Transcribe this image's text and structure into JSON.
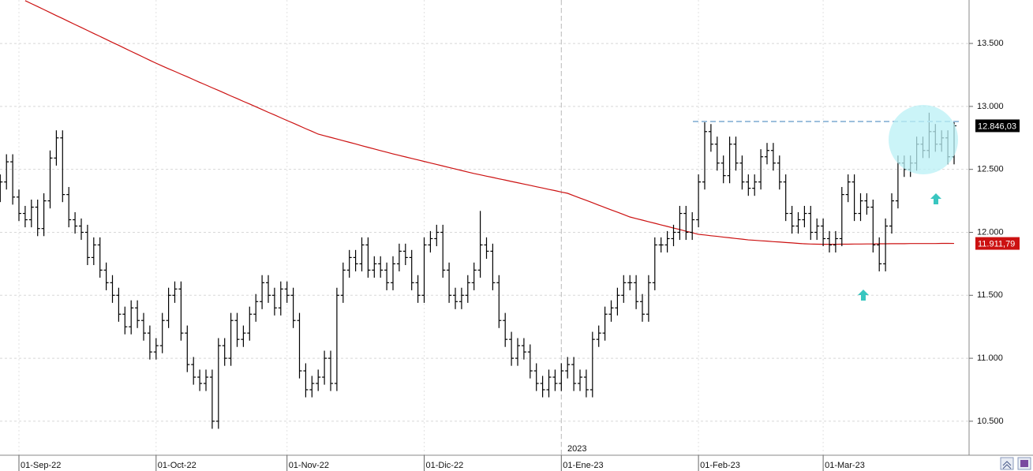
{
  "chart_data": {
    "type": "ohlc",
    "categories": [
      null,
      null,
      null,
      "01-Sep-22",
      null,
      null,
      null,
      null,
      null,
      null,
      null,
      null,
      null,
      null,
      null,
      null,
      null,
      null,
      null,
      null,
      null,
      null,
      null,
      null,
      null,
      "01-Oct-22",
      null,
      null,
      null,
      null,
      null,
      null,
      null,
      null,
      null,
      null,
      null,
      null,
      null,
      null,
      null,
      null,
      null,
      null,
      null,
      null,
      "01-Nov-22",
      null,
      null,
      null,
      null,
      null,
      null,
      null,
      null,
      null,
      null,
      null,
      null,
      null,
      null,
      null,
      null,
      null,
      null,
      null,
      null,
      null,
      "01-Dic-22",
      null,
      null,
      null,
      null,
      null,
      null,
      null,
      null,
      null,
      null,
      null,
      null,
      null,
      null,
      null,
      null,
      null,
      null,
      null,
      null,
      null,
      "01-Ene-23",
      null,
      null,
      null,
      null,
      null,
      null,
      null,
      null,
      null,
      null,
      null,
      null,
      null,
      null,
      null,
      null,
      null,
      null,
      null,
      null,
      null,
      "01-Feb-23",
      null,
      null,
      null,
      null,
      null,
      null,
      null,
      null,
      null,
      null,
      null,
      null,
      null,
      null,
      null,
      null,
      null,
      null,
      null,
      "01-Mar-23",
      null,
      null,
      null,
      null,
      null,
      null,
      null,
      null,
      null,
      null,
      null,
      null,
      null,
      null,
      null,
      null,
      null,
      null,
      null,
      null,
      null
    ],
    "year_label": "2023",
    "ohlc": {
      "color": "#000000",
      "last_label": "12.846,03",
      "open": [
        12300,
        12400,
        12560,
        12280,
        12150,
        12100,
        12200,
        12030,
        12250,
        12590,
        12750,
        12300,
        12100,
        12050,
        12000,
        11800,
        11900,
        11700,
        11600,
        11500,
        11350,
        11250,
        11400,
        11300,
        11200,
        11050,
        11100,
        11300,
        11500,
        11550,
        11200,
        10950,
        10850,
        10800,
        10850,
        10500,
        11100,
        11000,
        11300,
        11150,
        11200,
        11350,
        11450,
        11600,
        11500,
        11400,
        11550,
        11500,
        11300,
        10900,
        10750,
        10800,
        10850,
        11000,
        10800,
        11500,
        11700,
        11800,
        11750,
        11900,
        11700,
        11750,
        11700,
        11600,
        11750,
        11850,
        11800,
        11600,
        11500,
        11900,
        11950,
        12000,
        11700,
        11500,
        11450,
        11500,
        11600,
        11700,
        11900,
        11850,
        11600,
        11300,
        11150,
        11000,
        11100,
        11050,
        10900,
        10800,
        10750,
        10850,
        10800,
        10900,
        10950,
        10800,
        10850,
        10750,
        11150,
        11200,
        11350,
        11400,
        11500,
        11600,
        11600,
        11450,
        11350,
        11600,
        11900,
        11900,
        11950,
        12000,
        12150,
        12000,
        12100,
        12400,
        12800,
        12700,
        12550,
        12450,
        12700,
        12550,
        12400,
        12350,
        12400,
        12600,
        12650,
        12550,
        12400,
        12150,
        12050,
        12100,
        12150,
        12000,
        12050,
        11950,
        11900,
        11950,
        12300,
        12400,
        12150,
        12250,
        12200,
        11900,
        11750,
        12050,
        12250,
        12550,
        12500,
        12550,
        12700,
        12650,
        12800,
        12700,
        12750,
        12600
      ],
      "high": [
        12460,
        12620,
        12620,
        12340,
        12210,
        12260,
        12260,
        12310,
        12650,
        12810,
        12810,
        12360,
        12160,
        12110,
        12060,
        11960,
        11960,
        11760,
        11660,
        11560,
        11410,
        11460,
        11460,
        11360,
        11260,
        11160,
        11360,
        11560,
        11610,
        11610,
        11260,
        11010,
        10910,
        10910,
        10910,
        11160,
        11160,
        11360,
        11360,
        11260,
        11410,
        11510,
        11660,
        11660,
        11560,
        11610,
        11610,
        11560,
        11360,
        10960,
        10860,
        10910,
        11060,
        11060,
        11560,
        11760,
        11860,
        11860,
        11960,
        11960,
        11810,
        11810,
        11760,
        11810,
        11910,
        11910,
        11860,
        11660,
        11960,
        12010,
        12060,
        12060,
        11760,
        11560,
        11560,
        11660,
        11760,
        12170,
        11960,
        11910,
        11660,
        11360,
        11210,
        11160,
        11160,
        11110,
        10960,
        10860,
        10910,
        10910,
        10960,
        11010,
        11010,
        10910,
        10910,
        11210,
        11260,
        11410,
        11460,
        11560,
        11660,
        11660,
        11660,
        11510,
        11660,
        11960,
        11960,
        12010,
        12060,
        12210,
        12210,
        12160,
        12460,
        12880,
        12860,
        12760,
        12610,
        12760,
        12760,
        12610,
        12460,
        12460,
        12660,
        12710,
        12710,
        12610,
        12460,
        12210,
        12160,
        12210,
        12210,
        12110,
        12110,
        12010,
        12010,
        12360,
        12460,
        12460,
        12310,
        12310,
        12260,
        11960,
        12110,
        12310,
        12610,
        12610,
        12610,
        12760,
        12760,
        12950,
        12860,
        12810,
        12810,
        12880
      ],
      "low": [
        12240,
        12340,
        12220,
        12090,
        12040,
        12040,
        11970,
        11970,
        12190,
        12530,
        12240,
        12040,
        11990,
        11940,
        11740,
        11740,
        11640,
        11540,
        11440,
        11290,
        11190,
        11190,
        11240,
        11140,
        10990,
        10990,
        11040,
        11240,
        11440,
        11140,
        10890,
        10790,
        10740,
        10740,
        10440,
        10440,
        10940,
        10940,
        11090,
        11090,
        11140,
        11290,
        11390,
        11440,
        11340,
        11340,
        11440,
        11240,
        10840,
        10690,
        10690,
        10740,
        10790,
        10740,
        10740,
        11440,
        11640,
        11690,
        11690,
        11640,
        11640,
        11640,
        11540,
        11540,
        11690,
        11740,
        11540,
        11440,
        11440,
        11840,
        11890,
        11640,
        11440,
        11390,
        11390,
        11440,
        11540,
        11640,
        11790,
        11540,
        11240,
        11090,
        10940,
        10940,
        10990,
        10840,
        10740,
        10690,
        10690,
        10740,
        10740,
        10840,
        10740,
        10740,
        10690,
        10690,
        11090,
        11140,
        11290,
        11340,
        11440,
        11540,
        11390,
        11290,
        11290,
        11540,
        11840,
        11840,
        11890,
        11940,
        11940,
        11940,
        12040,
        12340,
        12640,
        12490,
        12390,
        12390,
        12490,
        12340,
        12290,
        12290,
        12340,
        12540,
        12490,
        12340,
        12090,
        11990,
        11990,
        12040,
        11940,
        11940,
        11890,
        11840,
        11840,
        11890,
        12240,
        12090,
        12090,
        12140,
        11840,
        11690,
        11690,
        11990,
        12190,
        12440,
        12440,
        12490,
        12590,
        12590,
        12640,
        12640,
        12540,
        12540
      ],
      "close": [
        12400,
        12560,
        12280,
        12150,
        12100,
        12200,
        12030,
        12250,
        12590,
        12750,
        12300,
        12100,
        12050,
        12000,
        11800,
        11900,
        11700,
        11600,
        11500,
        11350,
        11250,
        11400,
        11300,
        11200,
        11050,
        11100,
        11300,
        11500,
        11550,
        11200,
        10950,
        10850,
        10800,
        10850,
        10500,
        11100,
        11000,
        11300,
        11150,
        11200,
        11350,
        11450,
        11600,
        11500,
        11400,
        11550,
        11500,
        11300,
        10900,
        10750,
        10800,
        10850,
        11000,
        10800,
        11500,
        11700,
        11800,
        11750,
        11900,
        11700,
        11750,
        11700,
        11600,
        11750,
        11850,
        11800,
        11600,
        11500,
        11900,
        11950,
        12000,
        11700,
        11500,
        11450,
        11500,
        11600,
        11700,
        11900,
        11850,
        11600,
        11300,
        11150,
        11000,
        11100,
        11050,
        10900,
        10800,
        10750,
        10850,
        10800,
        10900,
        10950,
        10800,
        10850,
        10750,
        11150,
        11200,
        11350,
        11400,
        11500,
        11600,
        11600,
        11450,
        11350,
        11600,
        11900,
        11900,
        11950,
        12000,
        12150,
        12000,
        12100,
        12400,
        12800,
        12700,
        12550,
        12450,
        12700,
        12550,
        12400,
        12350,
        12400,
        12600,
        12650,
        12550,
        12400,
        12150,
        12050,
        12100,
        12150,
        12000,
        12050,
        11950,
        11900,
        11950,
        12300,
        12400,
        12150,
        12250,
        12200,
        11900,
        11750,
        12050,
        12250,
        12550,
        12500,
        12550,
        12700,
        12650,
        12800,
        12700,
        12750,
        12600,
        12846.03
      ]
    },
    "moving_average": {
      "color": "#cc1111",
      "last_label": "11.911,79",
      "values": [
        null,
        null,
        null,
        null,
        13840,
        13816,
        13793,
        13769,
        13745,
        13721,
        13698,
        13674,
        13650,
        13627,
        13603,
        13579,
        13556,
        13532,
        13508,
        13485,
        13461,
        13437,
        13414,
        13390,
        13366,
        13343,
        13321,
        13299,
        13278,
        13256,
        13235,
        13213,
        13191,
        13170,
        13148,
        13127,
        13105,
        13083,
        13062,
        13040,
        13019,
        12997,
        12975,
        12953,
        12932,
        12910,
        12888,
        12867,
        12845,
        12823,
        12802,
        12780,
        12767,
        12754,
        12741,
        12728,
        12715,
        12702,
        12688,
        12675,
        12662,
        12649,
        12636,
        12623,
        12611,
        12599,
        12587,
        12575,
        12563,
        12551,
        12539,
        12527,
        12515,
        12503,
        12491,
        12479,
        12467,
        12457,
        12446,
        12436,
        12425,
        12415,
        12404,
        12394,
        12383,
        12373,
        12362,
        12352,
        12341,
        12331,
        12320,
        12310,
        12291,
        12272,
        12254,
        12235,
        12216,
        12197,
        12178,
        12160,
        12141,
        12122,
        12109,
        12097,
        12084,
        12072,
        12059,
        12047,
        12034,
        12022,
        12009,
        11997,
        11984,
        11979,
        11973,
        11968,
        11962,
        11957,
        11951,
        11946,
        11940,
        11937,
        11933,
        11930,
        11926,
        11923,
        11919,
        11916,
        11912,
        11909,
        11907,
        11906,
        11905,
        11905,
        11905,
        11906,
        11906,
        11907,
        11907,
        11908,
        11908,
        11909,
        11909,
        11910,
        11910,
        11910,
        11911,
        11911,
        11911,
        11911,
        11911,
        11912,
        11912,
        11911.79
      ]
    },
    "hline": {
      "value": 12880,
      "color": "#9cbfdc"
    },
    "ylim": [
      10230,
      13845
    ],
    "yticks": [
      {
        "value": 10500,
        "label": "10.500"
      },
      {
        "value": 11000,
        "label": "11.000"
      },
      {
        "value": 11500,
        "label": "11.500"
      },
      {
        "value": 12000,
        "label": "12.000"
      },
      {
        "value": 12500,
        "label": "12.500"
      },
      {
        "value": 13000,
        "label": "13.000"
      },
      {
        "value": 13500,
        "label": "13.500"
      }
    ],
    "grid": true
  }
}
